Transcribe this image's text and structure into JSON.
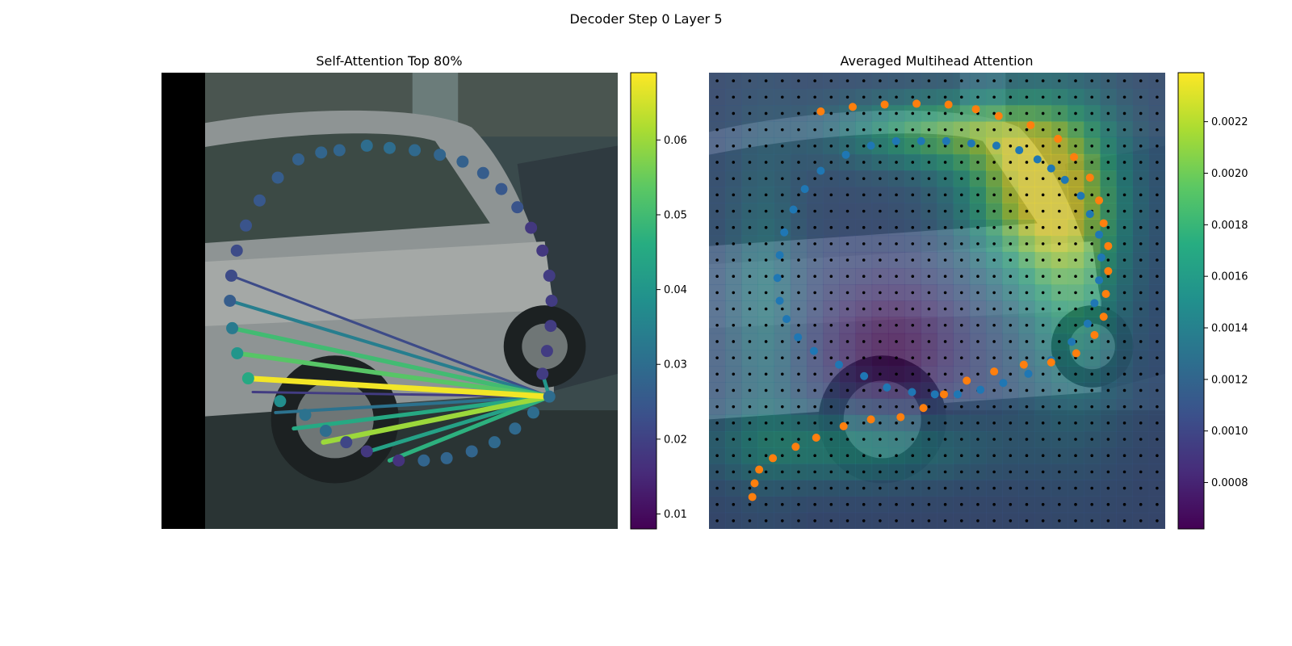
{
  "figure": {
    "title": "Decoder Step 0 Layer 5"
  },
  "chart_data": [
    {
      "type": "scatter",
      "title": "Self-Attention Top 80%",
      "background": "street photo of a silver hatchback car with a dark left border",
      "colormap": "viridis",
      "colorbar": {
        "ticks": [
          0.01,
          0.02,
          0.03,
          0.04,
          0.05,
          0.06
        ],
        "range": [
          0.008,
          0.069
        ]
      },
      "source_point": {
        "x": 0.85,
        "y": 0.71,
        "value": 0.03
      },
      "points": [
        {
          "x": 0.45,
          "y": 0.16,
          "value": 0.03
        },
        {
          "x": 0.5,
          "y": 0.165,
          "value": 0.03
        },
        {
          "x": 0.555,
          "y": 0.17,
          "value": 0.029
        },
        {
          "x": 0.61,
          "y": 0.18,
          "value": 0.028
        },
        {
          "x": 0.66,
          "y": 0.195,
          "value": 0.027
        },
        {
          "x": 0.705,
          "y": 0.22,
          "value": 0.026
        },
        {
          "x": 0.745,
          "y": 0.255,
          "value": 0.025
        },
        {
          "x": 0.78,
          "y": 0.295,
          "value": 0.024
        },
        {
          "x": 0.81,
          "y": 0.34,
          "value": 0.018
        },
        {
          "x": 0.835,
          "y": 0.39,
          "value": 0.018
        },
        {
          "x": 0.85,
          "y": 0.445,
          "value": 0.019
        },
        {
          "x": 0.855,
          "y": 0.5,
          "value": 0.019
        },
        {
          "x": 0.853,
          "y": 0.555,
          "value": 0.019
        },
        {
          "x": 0.845,
          "y": 0.61,
          "value": 0.019
        },
        {
          "x": 0.835,
          "y": 0.66,
          "value": 0.019
        },
        {
          "x": 0.85,
          "y": 0.71,
          "value": 0.03
        },
        {
          "x": 0.815,
          "y": 0.745,
          "value": 0.03
        },
        {
          "x": 0.775,
          "y": 0.78,
          "value": 0.029
        },
        {
          "x": 0.73,
          "y": 0.81,
          "value": 0.029
        },
        {
          "x": 0.68,
          "y": 0.83,
          "value": 0.028
        },
        {
          "x": 0.625,
          "y": 0.845,
          "value": 0.028
        },
        {
          "x": 0.575,
          "y": 0.85,
          "value": 0.028
        },
        {
          "x": 0.52,
          "y": 0.85,
          "value": 0.017
        },
        {
          "x": 0.45,
          "y": 0.83,
          "value": 0.018
        },
        {
          "x": 0.405,
          "y": 0.81,
          "value": 0.021
        },
        {
          "x": 0.36,
          "y": 0.785,
          "value": 0.03
        },
        {
          "x": 0.315,
          "y": 0.75,
          "value": 0.031
        },
        {
          "x": 0.26,
          "y": 0.72,
          "value": 0.038
        },
        {
          "x": 0.19,
          "y": 0.67,
          "value": 0.045
        },
        {
          "x": 0.166,
          "y": 0.615,
          "value": 0.04
        },
        {
          "x": 0.155,
          "y": 0.56,
          "value": 0.033
        },
        {
          "x": 0.15,
          "y": 0.5,
          "value": 0.026
        },
        {
          "x": 0.153,
          "y": 0.445,
          "value": 0.022
        },
        {
          "x": 0.165,
          "y": 0.39,
          "value": 0.022
        },
        {
          "x": 0.185,
          "y": 0.335,
          "value": 0.024
        },
        {
          "x": 0.215,
          "y": 0.28,
          "value": 0.025
        },
        {
          "x": 0.255,
          "y": 0.23,
          "value": 0.026
        },
        {
          "x": 0.3,
          "y": 0.19,
          "value": 0.027
        },
        {
          "x": 0.35,
          "y": 0.175,
          "value": 0.028
        },
        {
          "x": 0.39,
          "y": 0.17,
          "value": 0.028
        }
      ],
      "links": [
        {
          "tx": 0.19,
          "ty": 0.67,
          "value": 0.068
        },
        {
          "tx": 0.355,
          "ty": 0.81,
          "value": 0.06
        },
        {
          "tx": 0.166,
          "ty": 0.615,
          "value": 0.053
        },
        {
          "tx": 0.155,
          "ty": 0.56,
          "value": 0.05
        },
        {
          "tx": 0.29,
          "ty": 0.78,
          "value": 0.045
        },
        {
          "tx": 0.5,
          "ty": 0.85,
          "value": 0.047
        },
        {
          "tx": 0.455,
          "ty": 0.83,
          "value": 0.043
        },
        {
          "tx": 0.15,
          "ty": 0.5,
          "value": 0.034
        },
        {
          "tx": 0.25,
          "ty": 0.745,
          "value": 0.031
        },
        {
          "tx": 0.835,
          "ty": 0.66,
          "value": 0.04
        },
        {
          "tx": 0.153,
          "ty": 0.445,
          "value": 0.022
        },
        {
          "tx": 0.2,
          "ty": 0.7,
          "value": 0.019
        }
      ]
    },
    {
      "type": "heatmap",
      "title": "Averaged Multihead Attention",
      "background": "same car photo overlaid by attention heatmap",
      "colormap": "viridis",
      "colorbar": {
        "ticks": [
          0.0008,
          0.001,
          0.0012,
          0.0014,
          0.0016,
          0.0018,
          0.002,
          0.0022
        ],
        "range": [
          0.00062,
          0.00239
        ]
      },
      "grid_size": [
        28,
        28
      ],
      "blue_points": [
        {
          "x": 0.3,
          "y": 0.18
        },
        {
          "x": 0.355,
          "y": 0.16
        },
        {
          "x": 0.41,
          "y": 0.15
        },
        {
          "x": 0.465,
          "y": 0.15
        },
        {
          "x": 0.52,
          "y": 0.15
        },
        {
          "x": 0.575,
          "y": 0.155
        },
        {
          "x": 0.63,
          "y": 0.16
        },
        {
          "x": 0.68,
          "y": 0.17
        },
        {
          "x": 0.72,
          "y": 0.19
        },
        {
          "x": 0.75,
          "y": 0.21
        },
        {
          "x": 0.78,
          "y": 0.235
        },
        {
          "x": 0.815,
          "y": 0.27
        },
        {
          "x": 0.835,
          "y": 0.31
        },
        {
          "x": 0.855,
          "y": 0.355
        },
        {
          "x": 0.86,
          "y": 0.405
        },
        {
          "x": 0.855,
          "y": 0.455
        },
        {
          "x": 0.845,
          "y": 0.505
        },
        {
          "x": 0.83,
          "y": 0.55
        },
        {
          "x": 0.795,
          "y": 0.59
        },
        {
          "x": 0.75,
          "y": 0.63
        },
        {
          "x": 0.7,
          "y": 0.66
        },
        {
          "x": 0.645,
          "y": 0.68
        },
        {
          "x": 0.595,
          "y": 0.695
        },
        {
          "x": 0.545,
          "y": 0.705
        },
        {
          "x": 0.495,
          "y": 0.705
        },
        {
          "x": 0.445,
          "y": 0.7
        },
        {
          "x": 0.39,
          "y": 0.69
        },
        {
          "x": 0.34,
          "y": 0.665
        },
        {
          "x": 0.285,
          "y": 0.64
        },
        {
          "x": 0.23,
          "y": 0.61
        },
        {
          "x": 0.195,
          "y": 0.58
        },
        {
          "x": 0.17,
          "y": 0.54
        },
        {
          "x": 0.155,
          "y": 0.5
        },
        {
          "x": 0.15,
          "y": 0.45
        },
        {
          "x": 0.155,
          "y": 0.4
        },
        {
          "x": 0.165,
          "y": 0.35
        },
        {
          "x": 0.185,
          "y": 0.3
        },
        {
          "x": 0.21,
          "y": 0.255
        },
        {
          "x": 0.245,
          "y": 0.215
        }
      ],
      "orange_points": [
        {
          "x": 0.245,
          "y": 0.085
        },
        {
          "x": 0.315,
          "y": 0.075
        },
        {
          "x": 0.385,
          "y": 0.07
        },
        {
          "x": 0.455,
          "y": 0.068
        },
        {
          "x": 0.525,
          "y": 0.07
        },
        {
          "x": 0.585,
          "y": 0.08
        },
        {
          "x": 0.635,
          "y": 0.095
        },
        {
          "x": 0.705,
          "y": 0.115
        },
        {
          "x": 0.765,
          "y": 0.145
        },
        {
          "x": 0.8,
          "y": 0.185
        },
        {
          "x": 0.835,
          "y": 0.23
        },
        {
          "x": 0.855,
          "y": 0.28
        },
        {
          "x": 0.865,
          "y": 0.33
        },
        {
          "x": 0.875,
          "y": 0.38
        },
        {
          "x": 0.875,
          "y": 0.435
        },
        {
          "x": 0.87,
          "y": 0.485
        },
        {
          "x": 0.865,
          "y": 0.535
        },
        {
          "x": 0.845,
          "y": 0.575
        },
        {
          "x": 0.805,
          "y": 0.615
        },
        {
          "x": 0.75,
          "y": 0.635
        },
        {
          "x": 0.69,
          "y": 0.64
        },
        {
          "x": 0.625,
          "y": 0.655
        },
        {
          "x": 0.565,
          "y": 0.675
        },
        {
          "x": 0.515,
          "y": 0.705
        },
        {
          "x": 0.47,
          "y": 0.735
        },
        {
          "x": 0.42,
          "y": 0.755
        },
        {
          "x": 0.355,
          "y": 0.76
        },
        {
          "x": 0.295,
          "y": 0.775
        },
        {
          "x": 0.235,
          "y": 0.8
        },
        {
          "x": 0.19,
          "y": 0.82
        },
        {
          "x": 0.14,
          "y": 0.845
        },
        {
          "x": 0.11,
          "y": 0.87
        },
        {
          "x": 0.1,
          "y": 0.9
        },
        {
          "x": 0.095,
          "y": 0.93
        }
      ]
    }
  ]
}
